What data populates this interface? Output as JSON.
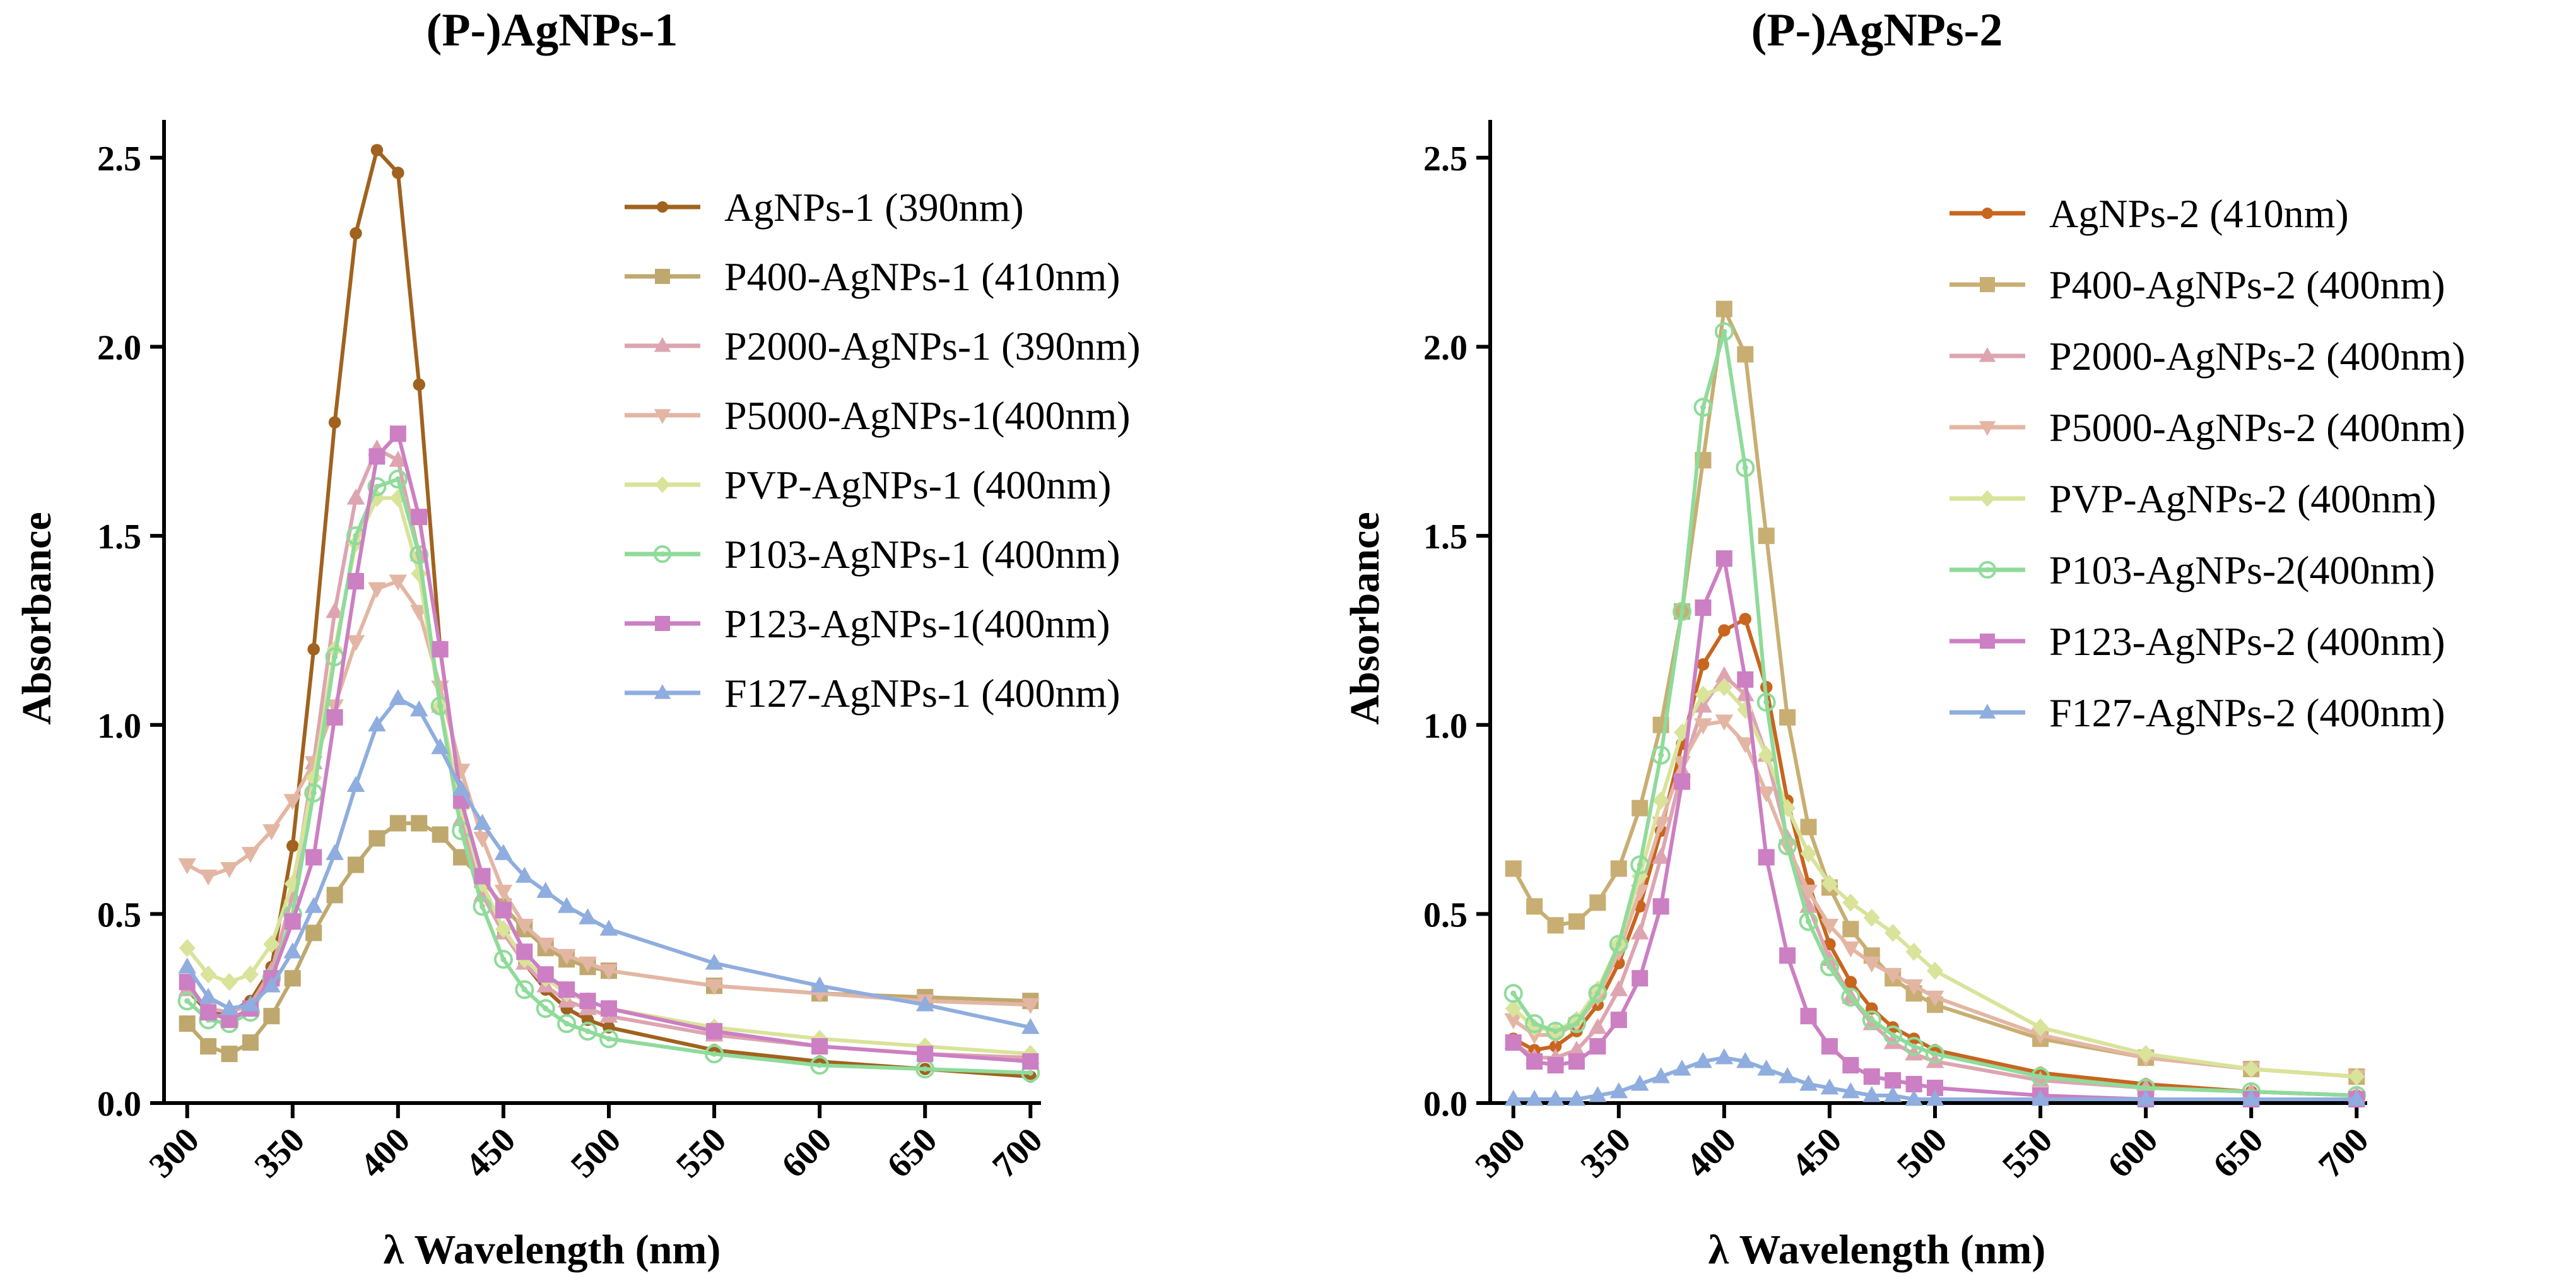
{
  "chart_data": [
    {
      "type": "line",
      "title": "(P-)AgNPs-1",
      "xlabel": "λ  Wavelength (nm)",
      "ylabel": "Absorbance",
      "xlim": [
        295,
        705
      ],
      "ylim": [
        0,
        2.6
      ],
      "xticks": [
        300,
        350,
        400,
        450,
        500,
        550,
        600,
        650,
        700
      ],
      "yticks": [
        0.0,
        0.5,
        1.0,
        1.5,
        2.0,
        2.5
      ],
      "ytick_labels": [
        "0.0",
        "0.5",
        "1.0",
        "1.5",
        "2.0",
        "2.5"
      ],
      "legend_position": "top-right",
      "series": [
        {
          "name": "AgNPs-1 (390nm)",
          "color": "#A0621E",
          "marker": "circle",
          "x": [
            300,
            310,
            320,
            330,
            340,
            350,
            360,
            370,
            380,
            390,
            400,
            410,
            420,
            430,
            440,
            450,
            460,
            470,
            480,
            490,
            500,
            550,
            600,
            650,
            700
          ],
          "y": [
            0.3,
            0.24,
            0.24,
            0.27,
            0.36,
            0.68,
            1.2,
            1.8,
            2.3,
            2.52,
            2.46,
            1.9,
            1.2,
            0.8,
            0.58,
            0.45,
            0.37,
            0.3,
            0.25,
            0.22,
            0.2,
            0.14,
            0.11,
            0.09,
            0.07
          ]
        },
        {
          "name": "P400-AgNPs-1 (410nm)",
          "color": "#BFA86E",
          "marker": "square",
          "x": [
            300,
            310,
            320,
            330,
            340,
            350,
            360,
            370,
            380,
            390,
            400,
            410,
            420,
            430,
            440,
            450,
            460,
            470,
            480,
            490,
            500,
            550,
            600,
            650,
            700
          ],
          "y": [
            0.21,
            0.15,
            0.13,
            0.16,
            0.23,
            0.33,
            0.45,
            0.55,
            0.63,
            0.7,
            0.74,
            0.74,
            0.71,
            0.65,
            0.59,
            0.52,
            0.46,
            0.41,
            0.38,
            0.36,
            0.35,
            0.31,
            0.29,
            0.28,
            0.27
          ]
        },
        {
          "name": "P2000-AgNPs-1 (390nm)",
          "color": "#DDA5B0",
          "marker": "triangle-up",
          "x": [
            300,
            310,
            320,
            330,
            340,
            350,
            360,
            370,
            380,
            390,
            400,
            410,
            420,
            430,
            440,
            450,
            460,
            470,
            480,
            490,
            500,
            550,
            600,
            650,
            700
          ],
          "y": [
            0.3,
            0.25,
            0.24,
            0.26,
            0.35,
            0.55,
            0.9,
            1.3,
            1.6,
            1.73,
            1.7,
            1.45,
            1.05,
            0.75,
            0.55,
            0.45,
            0.37,
            0.31,
            0.27,
            0.25,
            0.23,
            0.18,
            0.15,
            0.13,
            0.12
          ]
        },
        {
          "name": "P5000-AgNPs-1(400nm)",
          "color": "#E3B6A4",
          "marker": "triangle-down",
          "x": [
            300,
            310,
            320,
            330,
            340,
            350,
            360,
            370,
            380,
            390,
            400,
            410,
            420,
            430,
            440,
            450,
            460,
            470,
            480,
            490,
            500,
            550,
            600,
            650,
            700
          ],
          "y": [
            0.63,
            0.6,
            0.62,
            0.66,
            0.72,
            0.8,
            0.9,
            1.05,
            1.22,
            1.36,
            1.38,
            1.3,
            1.1,
            0.88,
            0.7,
            0.56,
            0.47,
            0.42,
            0.39,
            0.37,
            0.35,
            0.31,
            0.29,
            0.27,
            0.26
          ]
        },
        {
          "name": "PVP-AgNPs-1 (400nm)",
          "color": "#D9E39A",
          "marker": "diamond",
          "x": [
            300,
            310,
            320,
            330,
            340,
            350,
            360,
            370,
            380,
            390,
            400,
            410,
            420,
            430,
            440,
            450,
            460,
            470,
            480,
            490,
            500,
            550,
            600,
            650,
            700
          ],
          "y": [
            0.41,
            0.34,
            0.32,
            0.34,
            0.42,
            0.58,
            0.86,
            1.2,
            1.48,
            1.6,
            1.6,
            1.4,
            1.05,
            0.78,
            0.58,
            0.46,
            0.38,
            0.33,
            0.29,
            0.27,
            0.25,
            0.2,
            0.17,
            0.15,
            0.13
          ]
        },
        {
          "name": "P103-AgNPs-1 (400nm)",
          "color": "#8FDB9A",
          "marker": "circle-dot",
          "x": [
            300,
            310,
            320,
            330,
            340,
            350,
            360,
            370,
            380,
            390,
            400,
            410,
            420,
            430,
            440,
            450,
            460,
            470,
            480,
            490,
            500,
            550,
            600,
            650,
            700
          ],
          "y": [
            0.27,
            0.22,
            0.21,
            0.24,
            0.33,
            0.5,
            0.82,
            1.18,
            1.5,
            1.63,
            1.65,
            1.45,
            1.05,
            0.72,
            0.52,
            0.38,
            0.3,
            0.25,
            0.21,
            0.19,
            0.17,
            0.13,
            0.1,
            0.09,
            0.08
          ]
        },
        {
          "name": "P123-AgNPs-1(400nm)",
          "color": "#CC7FC2",
          "marker": "square",
          "x": [
            300,
            310,
            320,
            330,
            340,
            350,
            360,
            370,
            380,
            390,
            400,
            410,
            420,
            430,
            440,
            450,
            460,
            470,
            480,
            490,
            500,
            550,
            600,
            650,
            700
          ],
          "y": [
            0.32,
            0.24,
            0.22,
            0.25,
            0.33,
            0.48,
            0.65,
            1.02,
            1.38,
            1.71,
            1.77,
            1.55,
            1.2,
            0.8,
            0.6,
            0.51,
            0.4,
            0.34,
            0.3,
            0.27,
            0.25,
            0.19,
            0.15,
            0.13,
            0.11
          ]
        },
        {
          "name": "F127-AgNPs-1 (400nm)",
          "color": "#8FADDE",
          "marker": "triangle-up",
          "x": [
            300,
            310,
            320,
            330,
            340,
            350,
            360,
            370,
            380,
            390,
            400,
            410,
            420,
            430,
            440,
            450,
            460,
            470,
            480,
            490,
            500,
            550,
            600,
            650,
            700
          ],
          "y": [
            0.36,
            0.28,
            0.25,
            0.26,
            0.31,
            0.4,
            0.52,
            0.66,
            0.84,
            1.0,
            1.07,
            1.04,
            0.94,
            0.83,
            0.74,
            0.66,
            0.6,
            0.56,
            0.52,
            0.49,
            0.46,
            0.37,
            0.31,
            0.26,
            0.2
          ]
        }
      ]
    },
    {
      "type": "line",
      "title": "(P-)AgNPs-2",
      "xlabel": "λ  Wavelength (nm)",
      "ylabel": "Absorbance",
      "xlim": [
        295,
        705
      ],
      "ylim": [
        0,
        2.6
      ],
      "xticks": [
        300,
        350,
        400,
        450,
        500,
        550,
        600,
        650,
        700
      ],
      "yticks": [
        0.0,
        0.5,
        1.0,
        1.5,
        2.0,
        2.5
      ],
      "ytick_labels": [
        "0.0",
        "0.5",
        "1.0",
        "1.5",
        "2.0",
        "2.5"
      ],
      "legend_position": "top-right",
      "series": [
        {
          "name": "AgNPs-2 (410nm)",
          "color": "#C8651E",
          "marker": "circle",
          "x": [
            300,
            310,
            320,
            330,
            340,
            350,
            360,
            370,
            380,
            390,
            400,
            410,
            420,
            430,
            440,
            450,
            460,
            470,
            480,
            490,
            500,
            550,
            600,
            650,
            700
          ],
          "y": [
            0.17,
            0.14,
            0.15,
            0.19,
            0.26,
            0.37,
            0.52,
            0.72,
            0.95,
            1.16,
            1.25,
            1.28,
            1.1,
            0.8,
            0.58,
            0.42,
            0.32,
            0.25,
            0.2,
            0.17,
            0.14,
            0.08,
            0.05,
            0.03,
            0.02
          ]
        },
        {
          "name": "P400-AgNPs-2 (400nm)",
          "color": "#C8AE72",
          "marker": "square",
          "x": [
            300,
            310,
            320,
            330,
            340,
            350,
            360,
            370,
            380,
            390,
            400,
            410,
            420,
            430,
            440,
            450,
            460,
            470,
            480,
            490,
            500,
            550,
            600,
            650,
            700
          ],
          "y": [
            0.62,
            0.52,
            0.47,
            0.48,
            0.53,
            0.62,
            0.78,
            1.0,
            1.3,
            1.7,
            2.1,
            1.98,
            1.5,
            1.02,
            0.73,
            0.57,
            0.46,
            0.39,
            0.33,
            0.29,
            0.26,
            0.17,
            0.12,
            0.09,
            0.07
          ]
        },
        {
          "name": "P2000-AgNPs-2 (400nm)",
          "color": "#DDA5B0",
          "marker": "triangle-up",
          "x": [
            300,
            310,
            320,
            330,
            340,
            350,
            360,
            370,
            380,
            390,
            400,
            410,
            420,
            430,
            440,
            450,
            460,
            470,
            480,
            490,
            500,
            550,
            600,
            650,
            700
          ],
          "y": [
            0.16,
            0.12,
            0.12,
            0.14,
            0.2,
            0.3,
            0.45,
            0.65,
            0.88,
            1.05,
            1.13,
            1.08,
            0.92,
            0.7,
            0.52,
            0.38,
            0.28,
            0.21,
            0.16,
            0.13,
            0.11,
            0.06,
            0.04,
            0.03,
            0.02
          ]
        },
        {
          "name": "P5000-AgNPs-2 (400nm)",
          "color": "#E3B6A4",
          "marker": "triangle-down",
          "x": [
            300,
            310,
            320,
            330,
            340,
            350,
            360,
            370,
            380,
            390,
            400,
            410,
            420,
            430,
            440,
            450,
            460,
            470,
            480,
            490,
            500,
            550,
            600,
            650,
            700
          ],
          "y": [
            0.22,
            0.18,
            0.18,
            0.21,
            0.28,
            0.4,
            0.56,
            0.74,
            0.9,
            1.0,
            1.01,
            0.95,
            0.82,
            0.68,
            0.56,
            0.47,
            0.41,
            0.37,
            0.34,
            0.31,
            0.28,
            0.18,
            0.12,
            0.09,
            0.07
          ]
        },
        {
          "name": "PVP-AgNPs-2 (400nm)",
          "color": "#D9E39A",
          "marker": "diamond",
          "x": [
            300,
            310,
            320,
            330,
            340,
            350,
            360,
            370,
            380,
            390,
            400,
            410,
            420,
            430,
            440,
            450,
            460,
            470,
            480,
            490,
            500,
            550,
            600,
            650,
            700
          ],
          "y": [
            0.25,
            0.2,
            0.19,
            0.22,
            0.3,
            0.42,
            0.6,
            0.8,
            0.98,
            1.08,
            1.1,
            1.04,
            0.92,
            0.78,
            0.66,
            0.58,
            0.53,
            0.49,
            0.45,
            0.4,
            0.35,
            0.2,
            0.13,
            0.09,
            0.07
          ]
        },
        {
          "name": "P103-AgNPs-2(400nm)",
          "color": "#8FDB9A",
          "marker": "circle-dot",
          "x": [
            300,
            310,
            320,
            330,
            340,
            350,
            360,
            370,
            380,
            390,
            400,
            410,
            420,
            430,
            440,
            450,
            460,
            470,
            480,
            490,
            500,
            550,
            600,
            650,
            700
          ],
          "y": [
            0.29,
            0.21,
            0.19,
            0.21,
            0.29,
            0.42,
            0.63,
            0.92,
            1.3,
            1.84,
            2.04,
            1.68,
            1.06,
            0.68,
            0.48,
            0.36,
            0.28,
            0.22,
            0.18,
            0.15,
            0.13,
            0.07,
            0.04,
            0.03,
            0.02
          ]
        },
        {
          "name": "P123-AgNPs-2 (400nm)",
          "color": "#CC7FC2",
          "marker": "square",
          "x": [
            300,
            310,
            320,
            330,
            340,
            350,
            360,
            370,
            380,
            390,
            400,
            410,
            420,
            430,
            440,
            450,
            460,
            470,
            480,
            490,
            500,
            550,
            600,
            650,
            700
          ],
          "y": [
            0.16,
            0.11,
            0.1,
            0.11,
            0.15,
            0.22,
            0.33,
            0.52,
            0.85,
            1.31,
            1.44,
            1.12,
            0.65,
            0.39,
            0.23,
            0.15,
            0.1,
            0.07,
            0.06,
            0.05,
            0.04,
            0.02,
            0.01,
            0.01,
            0.01
          ]
        },
        {
          "name": "F127-AgNPs-2 (400nm)",
          "color": "#8FADDE",
          "marker": "triangle-up",
          "x": [
            300,
            310,
            320,
            330,
            340,
            350,
            360,
            370,
            380,
            390,
            400,
            410,
            420,
            430,
            440,
            450,
            460,
            470,
            480,
            490,
            500,
            550,
            600,
            650,
            700
          ],
          "y": [
            0.01,
            0.01,
            0.01,
            0.01,
            0.02,
            0.03,
            0.05,
            0.07,
            0.09,
            0.11,
            0.12,
            0.11,
            0.09,
            0.07,
            0.05,
            0.04,
            0.03,
            0.02,
            0.02,
            0.01,
            0.01,
            0.01,
            0.01,
            0.01,
            0.01
          ]
        }
      ]
    }
  ]
}
